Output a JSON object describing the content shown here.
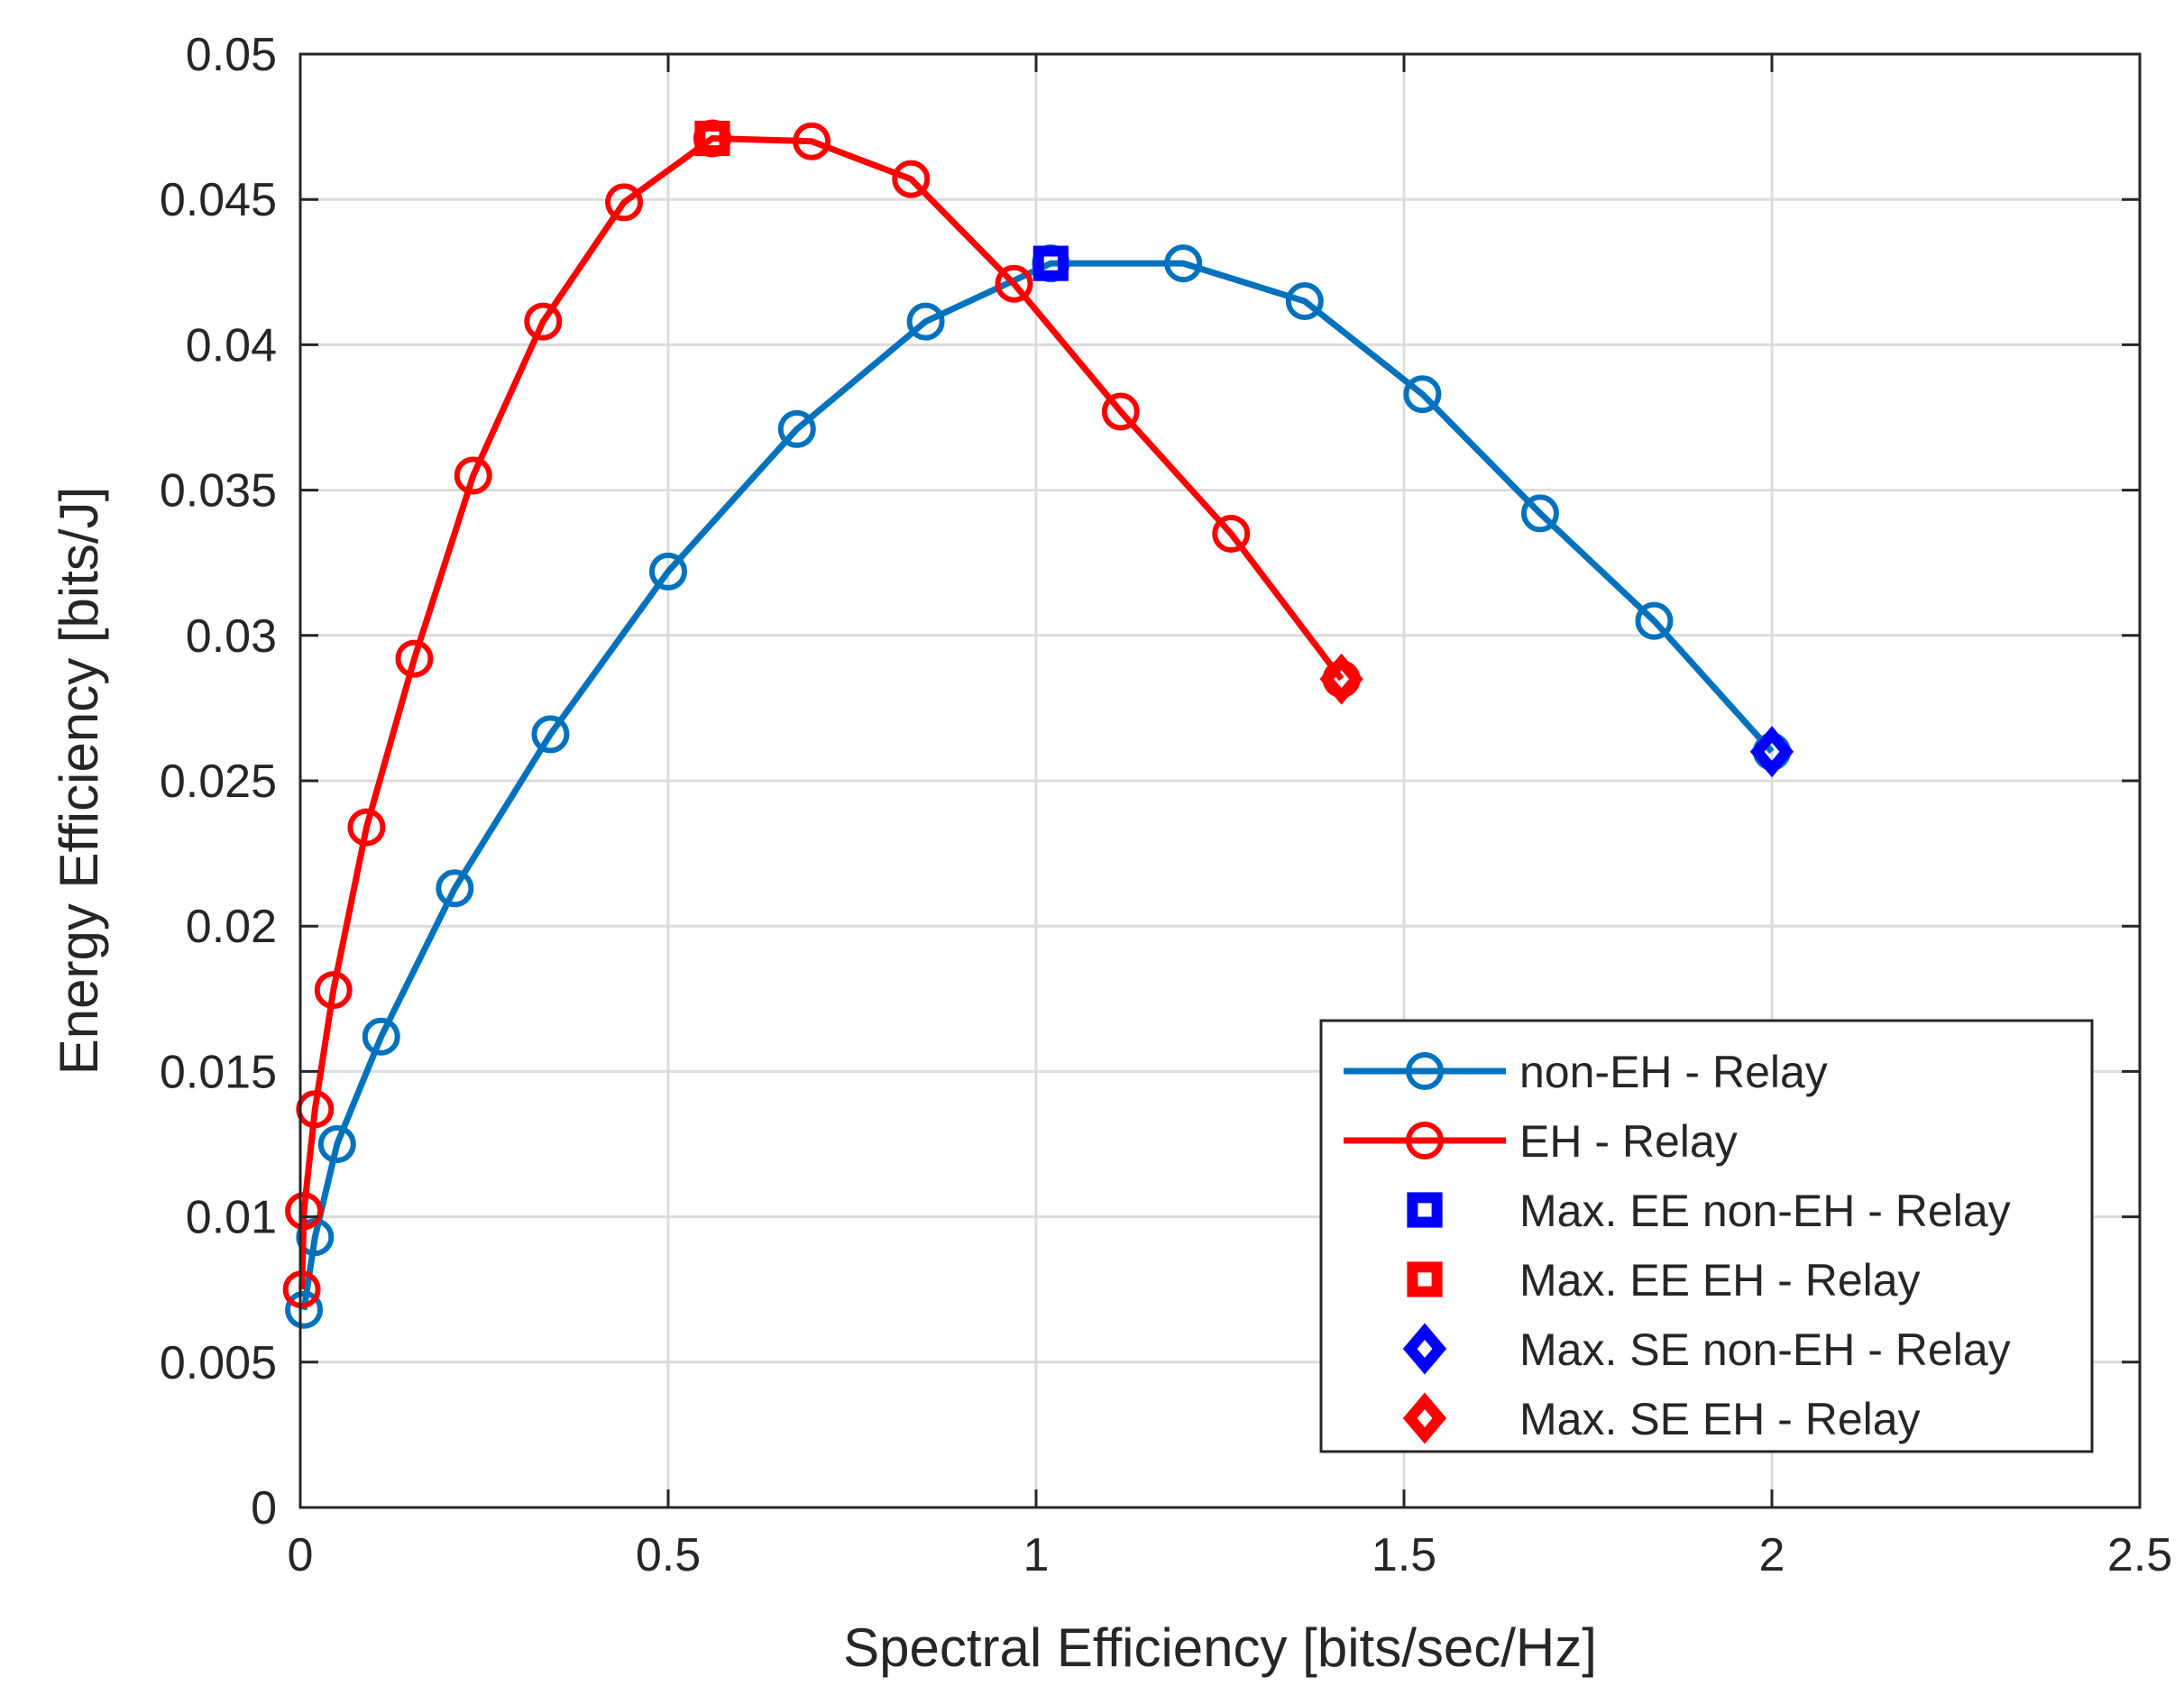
{
  "chart_data": {
    "type": "line",
    "title": "",
    "xlabel": "Spectral Efficiency [bits/sec/Hz]",
    "ylabel": "Energy Efficiency [bits/J]",
    "xlim": [
      0,
      2.5
    ],
    "ylim": [
      0,
      0.05
    ],
    "grid": true,
    "legend_position": "bottom-right",
    "xticks": [
      0,
      0.5,
      1,
      1.5,
      2,
      2.5
    ],
    "xtick_labels": [
      "0",
      "0.5",
      "1",
      "1.5",
      "2",
      "2.5"
    ],
    "yticks": [
      0,
      0.005,
      0.01,
      0.015,
      0.02,
      0.025,
      0.03,
      0.035,
      0.04,
      0.045,
      0.05
    ],
    "ytick_labels": [
      "0",
      "0.005",
      "0.01",
      "0.015",
      "0.02",
      "0.025",
      "0.03",
      "0.035",
      "0.04",
      "0.045",
      "0.05"
    ],
    "series": [
      {
        "name": "non-EH - Relay",
        "color": "#0072BD",
        "marker": "circle",
        "line": true,
        "x": [
          0.005,
          0.02,
          0.05,
          0.11,
          0.21,
          0.34,
          0.5,
          0.675,
          0.85,
          1.02,
          1.2,
          1.365,
          1.525,
          1.685,
          1.84,
          2.0
        ],
        "y": [
          0.0068,
          0.0093,
          0.0125,
          0.0162,
          0.0213,
          0.0266,
          0.0322,
          0.0371,
          0.0408,
          0.0428,
          0.0428,
          0.0415,
          0.0383,
          0.0342,
          0.0305,
          0.026
        ]
      },
      {
        "name": "EH - Relay",
        "color": "#FF0000",
        "marker": "circle",
        "line": true,
        "x": [
          0.002,
          0.005,
          0.02,
          0.045,
          0.09,
          0.155,
          0.235,
          0.33,
          0.44,
          0.56,
          0.695,
          0.83,
          0.97,
          1.115,
          1.265,
          1.415
        ],
        "y": [
          0.0075,
          0.0102,
          0.0137,
          0.0178,
          0.0234,
          0.0292,
          0.0355,
          0.0408,
          0.0449,
          0.0471,
          0.047,
          0.0457,
          0.0421,
          0.0377,
          0.0335,
          0.0285
        ]
      },
      {
        "name": "Max. EE non-EH - Relay",
        "color": "#0000FF",
        "marker": "square",
        "line": false,
        "x": [
          1.02
        ],
        "y": [
          0.0428
        ]
      },
      {
        "name": "Max. EE EH - Relay",
        "color": "#FF0000",
        "marker": "square",
        "line": false,
        "x": [
          0.56
        ],
        "y": [
          0.0471
        ]
      },
      {
        "name": "Max. SE non-EH - Relay",
        "color": "#0000FF",
        "marker": "diamond",
        "line": false,
        "x": [
          2.0
        ],
        "y": [
          0.026
        ]
      },
      {
        "name": "Max. SE EH - Relay",
        "color": "#FF0000",
        "marker": "diamond",
        "line": false,
        "x": [
          1.415
        ],
        "y": [
          0.0285
        ]
      }
    ]
  }
}
